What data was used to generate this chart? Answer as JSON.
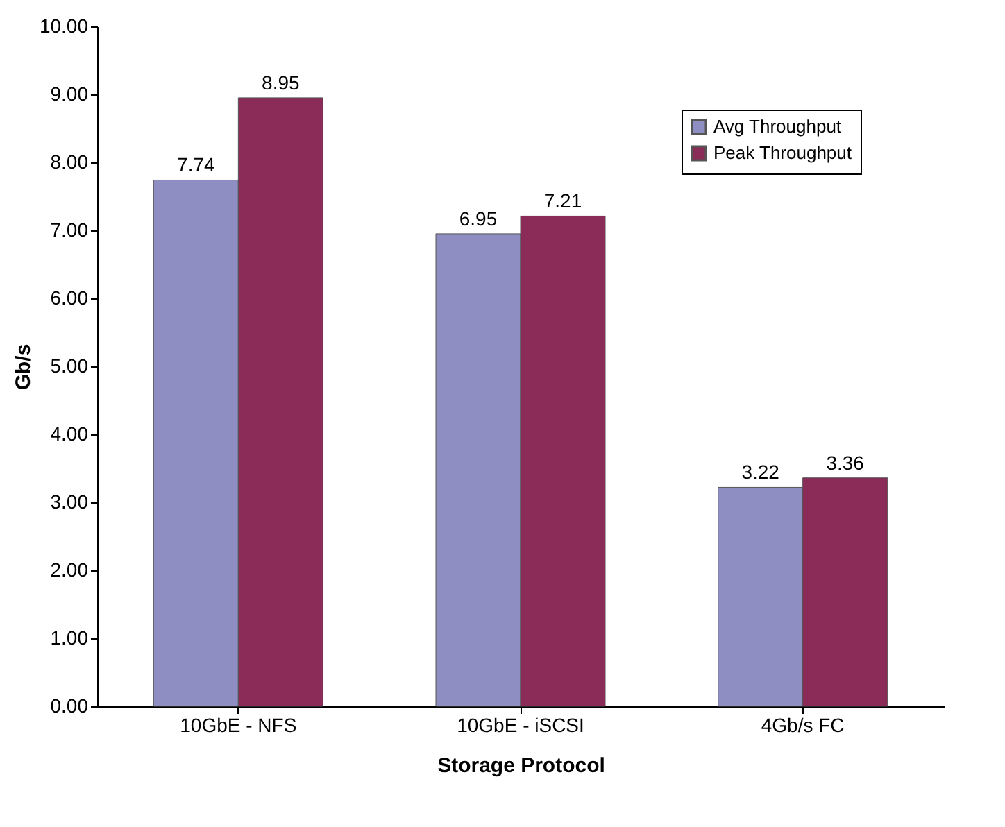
{
  "chart_data": {
    "type": "bar",
    "xlabel": "Storage Protocol",
    "ylabel": "Gb/s",
    "categories": [
      "10GbE - NFS",
      "10GbE - iSCSI",
      "4Gb/s FC"
    ],
    "series": [
      {
        "name": "Avg Throughput",
        "color": "#8e8ec2",
        "values": [
          7.74,
          6.95,
          3.22
        ]
      },
      {
        "name": "Peak Throughput",
        "color": "#8a2b58",
        "values": [
          8.95,
          7.21,
          3.36
        ]
      }
    ],
    "ylim": [
      0,
      10
    ],
    "yticks": [
      {
        "value": 0,
        "label": "0.00"
      },
      {
        "value": 1,
        "label": "1.00"
      },
      {
        "value": 2,
        "label": "2.00"
      },
      {
        "value": 3,
        "label": "3.00"
      },
      {
        "value": 4,
        "label": "4.00"
      },
      {
        "value": 5,
        "label": "5.00"
      },
      {
        "value": 6,
        "label": "6.00"
      },
      {
        "value": 7,
        "label": "7.00"
      },
      {
        "value": 8,
        "label": "8.00"
      },
      {
        "value": 9,
        "label": "9.00"
      },
      {
        "value": 10,
        "label": "10.00"
      }
    ],
    "data_labels": true,
    "grid": false,
    "legend": "top right"
  }
}
